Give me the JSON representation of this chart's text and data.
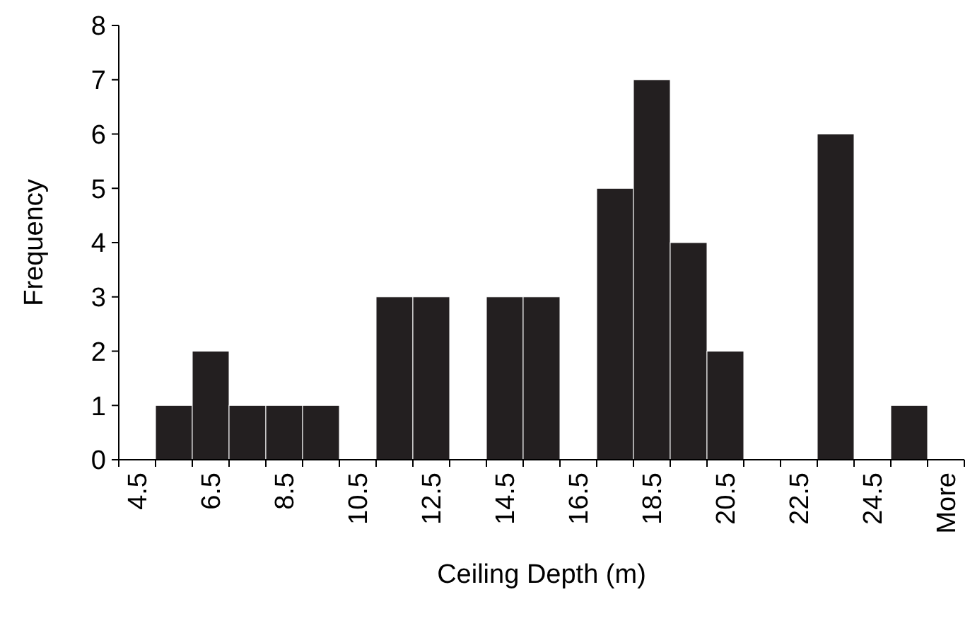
{
  "chart_data": {
    "type": "bar",
    "xlabel": "Ceiling Depth (m)",
    "ylabel": "Frequency",
    "categories": [
      "4.5",
      null,
      "6.5",
      null,
      "8.5",
      null,
      "10.5",
      null,
      "12.5",
      null,
      "14.5",
      null,
      "16.5",
      null,
      "18.5",
      null,
      "20.5",
      null,
      "22.5",
      null,
      "24.5",
      null,
      "More"
    ],
    "values": [
      0,
      1,
      2,
      1,
      1,
      1,
      0,
      3,
      3,
      0,
      3,
      3,
      0,
      5,
      7,
      4,
      2,
      0,
      0,
      6,
      0,
      1,
      0
    ],
    "color": "#231f20",
    "ylim": [
      0,
      8
    ],
    "yticks": [
      0,
      1,
      2,
      3,
      4,
      5,
      6,
      7,
      8
    ]
  }
}
